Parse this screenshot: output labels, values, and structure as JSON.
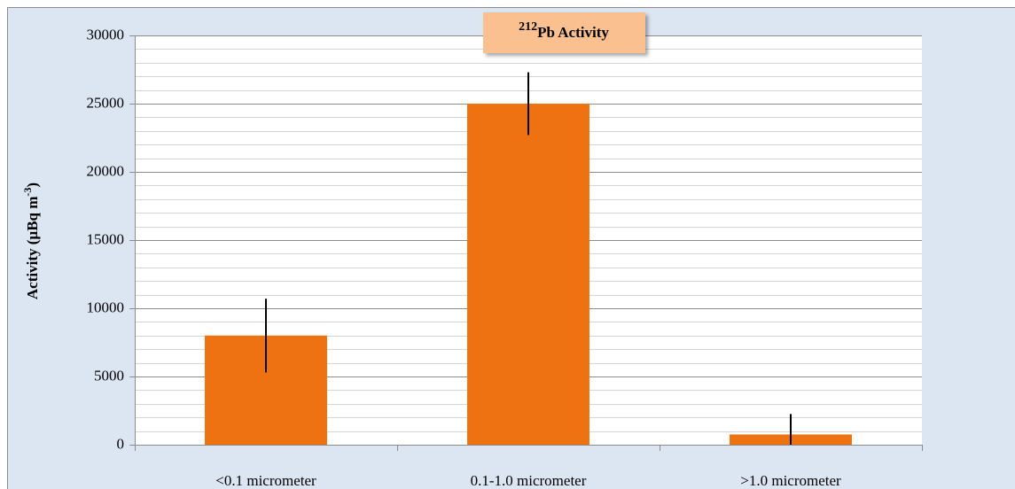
{
  "chart_data": {
    "type": "bar",
    "title": {
      "superscript": "212",
      "text": "Pb Activity"
    },
    "y_label": {
      "text": "Activity (µBq m",
      "superscript": "-3",
      "suffix": ")"
    },
    "categories": [
      "<0.1 micrometer",
      "0.1-1.0 micrometer",
      ">1.0 micrometer"
    ],
    "values": [
      8000,
      25000,
      750
    ],
    "errors": [
      2700,
      2300,
      1500
    ],
    "color": "#ee7212",
    "ylim": [
      0,
      30000
    ],
    "yticks": [
      0,
      5000,
      10000,
      15000,
      20000,
      25000,
      30000
    ],
    "minor_yticks": [
      1000,
      2000,
      3000,
      4000,
      6000,
      7000,
      8000,
      9000,
      11000,
      12000,
      13000,
      14000,
      16000,
      17000,
      18000,
      19000,
      21000,
      22000,
      23000,
      24000,
      26000,
      27000,
      28000,
      29000
    ],
    "grid": true
  }
}
